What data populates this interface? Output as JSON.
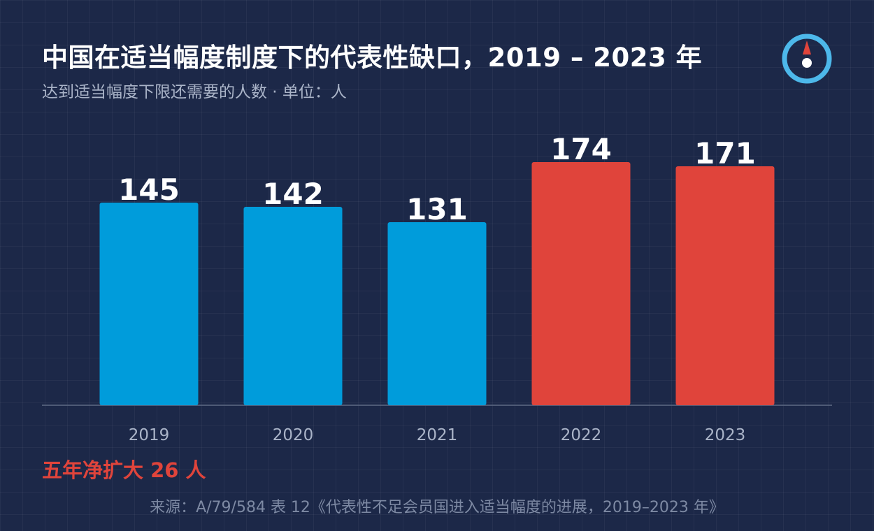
{
  "header": {
    "title": "中国在适当幅度制度下的代表性缺口，2019 – 2023 年",
    "subtitle": "达到适当幅度下限还需要的人数 · 单位：人"
  },
  "logo": {
    "icon": "compass-icon",
    "ring_color": "#4db8ea",
    "needle_color": "#e0443b"
  },
  "chart_data": {
    "type": "bar",
    "categories": [
      "2019",
      "2020",
      "2021",
      "2022",
      "2023"
    ],
    "values": [
      145,
      142,
      131,
      174,
      171
    ],
    "colors": [
      "#009cdb",
      "#009cdb",
      "#009cdb",
      "#e0443b",
      "#e0443b"
    ],
    "ylim": [
      0,
      185
    ],
    "grid": false,
    "legend": "none",
    "data_labels": [
      "145",
      "142",
      "131",
      "174",
      "171"
    ]
  },
  "summary": "五年净扩大 26 人",
  "source": "来源：A/79/584 表 12《代表性不足会员国进入适当幅度的进展，2019–2023 年》"
}
